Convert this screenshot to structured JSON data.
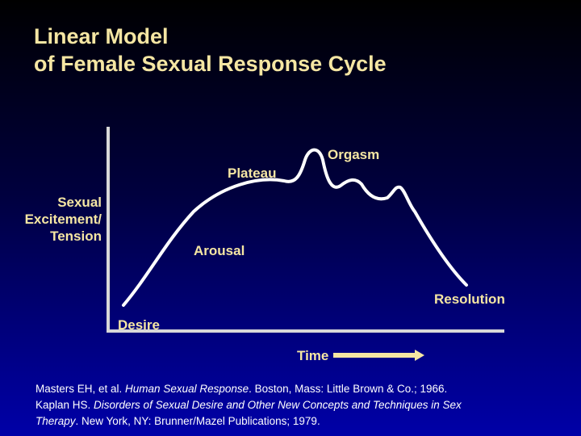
{
  "title": {
    "line1": "Linear Model",
    "line2": "of Female Sexual Response Cycle"
  },
  "y_axis": {
    "line1": "Sexual",
    "line2": "Excitement/",
    "line3": "Tension"
  },
  "x_axis": {
    "label": "Time"
  },
  "phases": {
    "desire": "Desire",
    "arousal": "Arousal",
    "plateau": "Plateau",
    "orgasm": "Orgasm",
    "resolution": "Resolution"
  },
  "references": [
    {
      "pre": "Masters EH, et al. ",
      "italic": "Human Sexual Response",
      "post": ". Boston, Mass: Little Brown & Co.; 1966."
    },
    {
      "pre": "Kaplan HS. ",
      "italic": "Disorders of Sexual Desire and Other New Concepts and Techniques in Sex",
      "post": ""
    },
    {
      "pre": "",
      "italic": "Therapy",
      "post": ". New York, NY: Brunner/Mazel Publications; 1979."
    }
  ],
  "colors": {
    "text_yellow": "#f5e6a3",
    "axis": "#d8d8d8",
    "curve": "#ffffff",
    "arrow": "#f5e6a3"
  }
}
